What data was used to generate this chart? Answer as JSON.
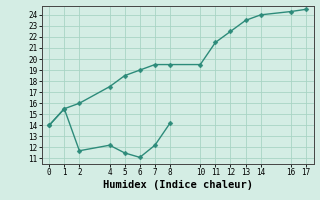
{
  "line1_x": [
    0,
    1,
    2,
    4,
    5,
    6,
    7,
    8,
    10,
    11,
    12,
    13,
    14,
    16,
    17
  ],
  "line1_y": [
    14,
    15.5,
    16,
    17.5,
    18.5,
    19.0,
    19.5,
    19.5,
    19.5,
    21.5,
    22.5,
    23.5,
    24.0,
    24.3,
    24.5
  ],
  "line2_x": [
    0,
    1,
    2,
    4,
    5,
    6,
    7,
    8
  ],
  "line2_y": [
    14,
    15.5,
    11.7,
    12.2,
    11.5,
    11.1,
    12.2,
    14.2
  ],
  "line_color": "#2d8b7a",
  "bg_color": "#d4ede4",
  "grid_color": "#a8d4c4",
  "xlabel": "Humidex (Indice chaleur)",
  "xlim": [
    -0.5,
    17.5
  ],
  "ylim": [
    10.5,
    24.8
  ],
  "xticks": [
    0,
    1,
    2,
    4,
    5,
    6,
    7,
    8,
    10,
    11,
    12,
    13,
    14,
    16,
    17
  ],
  "yticks": [
    11,
    12,
    13,
    14,
    15,
    16,
    17,
    18,
    19,
    20,
    21,
    22,
    23,
    24
  ],
  "marker_size": 2.5,
  "line_width": 1.0,
  "xlabel_fontsize": 7.5,
  "tick_fontsize": 5.5
}
